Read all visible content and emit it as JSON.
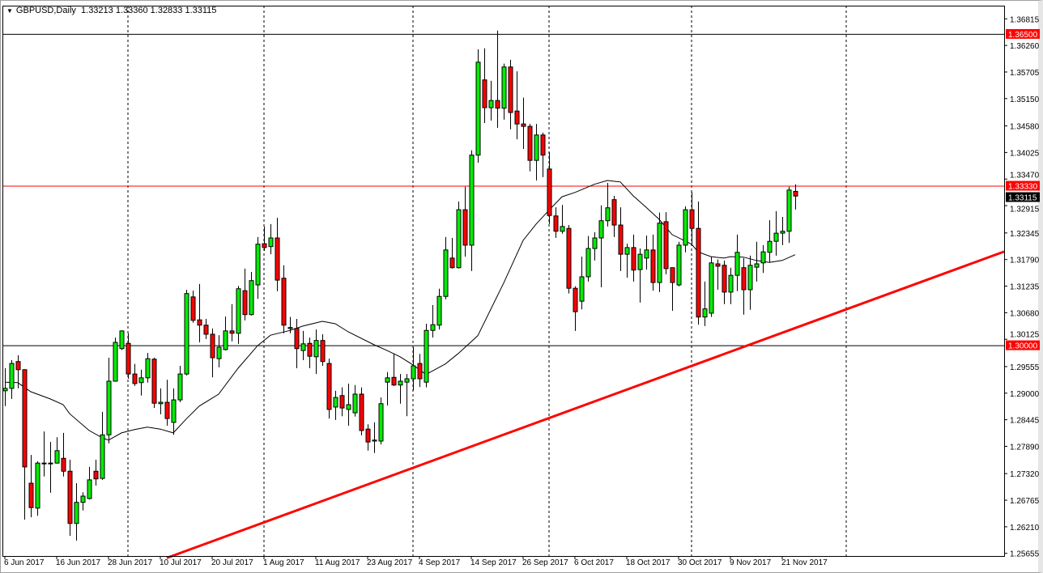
{
  "header": {
    "symbol": "GBPUSD,Daily",
    "ohlc": "1.33213 1.33360 1.32833 1.33115"
  },
  "chart_data": {
    "type": "candlestick",
    "symbol": "GBPUSD",
    "timeframe": "Daily",
    "ylim": [
      1.256,
      1.3709
    ],
    "grid": false,
    "colors": {
      "bull": "#00ee00",
      "bear": "#ff0000",
      "outline": "#000000",
      "ma": "#000000",
      "trendline": "#ff0000",
      "level_label": "#ff0000",
      "price_label": "#000000"
    },
    "y_ticks": [
      "1.36815",
      "1.36260",
      "1.35705",
      "1.35150",
      "1.34580",
      "1.34025",
      "1.33470",
      "1.32915",
      "1.32345",
      "1.31790",
      "1.31235",
      "1.30680",
      "1.30125",
      "1.29555",
      "1.29000",
      "1.28445",
      "1.27890",
      "1.27320",
      "1.26765",
      "1.26210",
      "1.25655"
    ],
    "x_ticks": [
      {
        "date": "2017-06-06",
        "label": "6 Jun 2017"
      },
      {
        "date": "2017-06-16",
        "label": "16 Jun 2017"
      },
      {
        "date": "2017-06-28",
        "label": "28 Jun 2017"
      },
      {
        "date": "2017-07-10",
        "label": "10 Jul 2017"
      },
      {
        "date": "2017-07-20",
        "label": "20 Jul 2017"
      },
      {
        "date": "2017-08-01",
        "label": "1 Aug 2017"
      },
      {
        "date": "2017-08-11",
        "label": "11 Aug 2017"
      },
      {
        "date": "2017-08-23",
        "label": "23 Aug 2017"
      },
      {
        "date": "2017-09-04",
        "label": "4 Sep 2017"
      },
      {
        "date": "2017-09-14",
        "label": "14 Sep 2017"
      },
      {
        "date": "2017-09-26",
        "label": "26 Sep 2017"
      },
      {
        "date": "2017-10-06",
        "label": "6 Oct 2017"
      },
      {
        "date": "2017-10-18",
        "label": "18 Oct 2017"
      },
      {
        "date": "2017-10-30",
        "label": "30 Oct 2017"
      },
      {
        "date": "2017-11-09",
        "label": "9 Nov 2017"
      },
      {
        "date": "2017-11-21",
        "label": "21 Nov 2017"
      }
    ],
    "levels": [
      {
        "price": 1.365,
        "label": "1.36500",
        "line": "#000000"
      },
      {
        "price": 1.3333,
        "label": "1.33330",
        "line": "#ff0000"
      },
      {
        "price": 1.3,
        "label": "1.30000",
        "line": "#000000"
      }
    ],
    "current_price": {
      "price": 1.33115,
      "label": "1.33115"
    },
    "trendline": [
      [
        "2017-07-11",
        1.2556
      ],
      [
        "2017-11-23",
        1.3036
      ]
    ],
    "candles_format": [
      "date",
      "open",
      "high",
      "low",
      "close"
    ],
    "candles": [
      [
        "2017-06-06",
        1.2905,
        1.2952,
        1.2873,
        1.291
      ],
      [
        "2017-06-07",
        1.291,
        1.2969,
        1.2888,
        1.2962
      ],
      [
        "2017-06-08",
        1.2966,
        1.2979,
        1.291,
        1.2949
      ],
      [
        "2017-06-09",
        1.2949,
        1.295,
        1.2636,
        1.2746
      ],
      [
        "2017-06-12",
        1.2712,
        1.2771,
        1.2641,
        1.2661
      ],
      [
        "2017-06-13",
        1.266,
        1.2758,
        1.2644,
        1.2754
      ],
      [
        "2017-06-14",
        1.2754,
        1.282,
        1.2726,
        1.2753
      ],
      [
        "2017-06-15",
        1.2753,
        1.2798,
        1.2692,
        1.2754
      ],
      [
        "2017-06-16",
        1.2754,
        1.2808,
        1.2753,
        1.278
      ],
      [
        "2017-06-19",
        1.2764,
        1.2817,
        1.2726,
        1.2737
      ],
      [
        "2017-06-20",
        1.2737,
        1.2761,
        1.2602,
        1.2628
      ],
      [
        "2017-06-21",
        1.2628,
        1.2712,
        1.2592,
        1.2672
      ],
      [
        "2017-06-22",
        1.2672,
        1.2693,
        1.2655,
        1.2685
      ],
      [
        "2017-06-23",
        1.268,
        1.2746,
        1.2678,
        1.2719
      ],
      [
        "2017-06-26",
        1.2737,
        1.2761,
        1.2707,
        1.2721
      ],
      [
        "2017-06-27",
        1.2722,
        1.2861,
        1.2719,
        1.2813
      ],
      [
        "2017-06-28",
        1.2813,
        1.2974,
        1.2795,
        1.2925
      ],
      [
        "2017-06-29",
        1.2925,
        1.3016,
        1.2924,
        1.3006
      ],
      [
        "2017-06-30",
        1.2993,
        1.3031,
        1.299,
        1.303
      ],
      [
        "2017-07-03",
        1.3004,
        1.3025,
        1.293,
        1.294
      ],
      [
        "2017-07-04",
        1.294,
        1.2961,
        1.2915,
        1.292
      ],
      [
        "2017-07-05",
        1.2922,
        1.2949,
        1.2895,
        1.2932
      ],
      [
        "2017-07-06",
        1.2932,
        1.2984,
        1.2922,
        1.2972
      ],
      [
        "2017-07-07",
        1.2971,
        1.2974,
        1.2869,
        1.2879
      ],
      [
        "2017-07-10",
        1.2878,
        1.291,
        1.2856,
        1.2881
      ],
      [
        "2017-07-11",
        1.2881,
        1.2928,
        1.2832,
        1.2847
      ],
      [
        "2017-07-12",
        1.2839,
        1.291,
        1.2813,
        1.2886
      ],
      [
        "2017-07-13",
        1.2886,
        1.2957,
        1.2881,
        1.294
      ],
      [
        "2017-07-14",
        1.294,
        1.3116,
        1.2937,
        1.3108
      ],
      [
        "2017-07-17",
        1.3101,
        1.3114,
        1.3047,
        1.3052
      ],
      [
        "2017-07-18",
        1.3053,
        1.3128,
        1.3006,
        1.3042
      ],
      [
        "2017-07-19",
        1.3042,
        1.3055,
        1.3013,
        1.3023
      ],
      [
        "2017-07-20",
        1.3023,
        1.3035,
        1.2933,
        1.2974
      ],
      [
        "2017-07-21",
        1.2972,
        1.3021,
        1.2954,
        1.2996
      ],
      [
        "2017-07-24",
        1.2991,
        1.306,
        1.2989,
        1.303
      ],
      [
        "2017-07-25",
        1.303,
        1.3086,
        1.3008,
        1.3025
      ],
      [
        "2017-07-26",
        1.3025,
        1.3124,
        1.3003,
        1.3118
      ],
      [
        "2017-07-27",
        1.3114,
        1.316,
        1.3052,
        1.3064
      ],
      [
        "2017-07-28",
        1.3064,
        1.3153,
        1.3062,
        1.3135
      ],
      [
        "2017-07-31",
        1.3126,
        1.3226,
        1.3097,
        1.3211
      ],
      [
        "2017-08-01",
        1.3212,
        1.3248,
        1.3197,
        1.3204
      ],
      [
        "2017-08-02",
        1.3206,
        1.3253,
        1.319,
        1.3224
      ],
      [
        "2017-08-03",
        1.3224,
        1.3266,
        1.3113,
        1.3136
      ],
      [
        "2017-08-04",
        1.314,
        1.3167,
        1.3025,
        1.3042
      ],
      [
        "2017-08-07",
        1.3035,
        1.3059,
        1.3025,
        1.3037
      ],
      [
        "2017-08-08",
        1.3035,
        1.3055,
        1.2952,
        1.2993
      ],
      [
        "2017-08-09",
        1.2989,
        1.303,
        1.2969,
        1.3003
      ],
      [
        "2017-08-10",
        1.3004,
        1.3016,
        1.2952,
        1.2977
      ],
      [
        "2017-08-11",
        1.2976,
        1.3033,
        1.294,
        1.301
      ],
      [
        "2017-08-14",
        1.301,
        1.3023,
        1.2957,
        1.2966
      ],
      [
        "2017-08-15",
        1.2962,
        1.2972,
        1.2847,
        1.2866
      ],
      [
        "2017-08-16",
        1.2871,
        1.2905,
        1.2844,
        1.2891
      ],
      [
        "2017-08-17",
        1.2895,
        1.2912,
        1.2852,
        1.2869
      ],
      [
        "2017-08-18",
        1.2866,
        1.292,
        1.2832,
        1.2876
      ],
      [
        "2017-08-21",
        1.2859,
        1.2917,
        1.2851,
        1.2898
      ],
      [
        "2017-08-22",
        1.2898,
        1.2912,
        1.2812,
        1.2822
      ],
      [
        "2017-08-23",
        1.2825,
        1.2835,
        1.278,
        1.2798
      ],
      [
        "2017-08-24",
        1.28,
        1.2839,
        1.2775,
        1.2802
      ],
      [
        "2017-08-25",
        1.28,
        1.2891,
        1.2793,
        1.2878
      ],
      [
        "2017-08-28",
        1.2923,
        1.2944,
        1.2874,
        1.2932
      ],
      [
        "2017-08-29",
        1.2933,
        1.2982,
        1.2915,
        1.2917
      ],
      [
        "2017-08-30",
        1.2917,
        1.294,
        1.2878,
        1.2925
      ],
      [
        "2017-08-31",
        1.2923,
        1.294,
        1.2852,
        1.293
      ],
      [
        "2017-09-01",
        1.293,
        1.2996,
        1.2906,
        1.2957
      ],
      [
        "2017-09-04",
        1.2962,
        1.2982,
        1.2913,
        1.293
      ],
      [
        "2017-09-05",
        1.2923,
        1.3045,
        1.2912,
        1.3031
      ],
      [
        "2017-09-06",
        1.3031,
        1.3084,
        1.3016,
        1.3043
      ],
      [
        "2017-09-07",
        1.3042,
        1.3118,
        1.3033,
        1.3102
      ],
      [
        "2017-09-08",
        1.3102,
        1.3226,
        1.3096,
        1.3199
      ],
      [
        "2017-09-11",
        1.3182,
        1.3224,
        1.316,
        1.3162
      ],
      [
        "2017-09-12",
        1.3162,
        1.33,
        1.316,
        1.3283
      ],
      [
        "2017-09-13",
        1.3283,
        1.3331,
        1.3185,
        1.3209
      ],
      [
        "2017-09-14",
        1.3209,
        1.3407,
        1.3155,
        1.3397
      ],
      [
        "2017-09-15",
        1.3397,
        1.3618,
        1.3381,
        1.3591
      ],
      [
        "2017-09-18",
        1.3554,
        1.362,
        1.3464,
        1.3496
      ],
      [
        "2017-09-19",
        1.3496,
        1.3552,
        1.3469,
        1.3511
      ],
      [
        "2017-09-20",
        1.3511,
        1.3657,
        1.3454,
        1.3495
      ],
      [
        "2017-09-21",
        1.3495,
        1.3588,
        1.3471,
        1.3581
      ],
      [
        "2017-09-22",
        1.3581,
        1.3596,
        1.3451,
        1.3486
      ],
      [
        "2017-09-25",
        1.3489,
        1.3572,
        1.343,
        1.3462
      ],
      [
        "2017-09-26",
        1.3462,
        1.3517,
        1.341,
        1.3457
      ],
      [
        "2017-09-27",
        1.3457,
        1.3462,
        1.3363,
        1.3386
      ],
      [
        "2017-09-28",
        1.3386,
        1.3462,
        1.3344,
        1.3439
      ],
      [
        "2017-09-29",
        1.3439,
        1.3444,
        1.3351,
        1.3397
      ],
      [
        "2017-10-02",
        1.3368,
        1.3403,
        1.3253,
        1.3271
      ],
      [
        "2017-10-03",
        1.327,
        1.3288,
        1.3224,
        1.3238
      ],
      [
        "2017-10-04",
        1.3238,
        1.3293,
        1.3233,
        1.3248
      ],
      [
        "2017-10-05",
        1.3244,
        1.3251,
        1.3108,
        1.3119
      ],
      [
        "2017-10-06",
        1.3119,
        1.3123,
        1.303,
        1.307
      ],
      [
        "2017-10-09",
        1.3092,
        1.3185,
        1.3075,
        1.3143
      ],
      [
        "2017-10-10",
        1.3143,
        1.3228,
        1.3133,
        1.3202
      ],
      [
        "2017-10-11",
        1.3202,
        1.3236,
        1.3177,
        1.3224
      ],
      [
        "2017-10-12",
        1.3224,
        1.3292,
        1.3121,
        1.326
      ],
      [
        "2017-10-13",
        1.326,
        1.3339,
        1.3248,
        1.3287
      ],
      [
        "2017-10-16",
        1.3304,
        1.3312,
        1.3226,
        1.3251
      ],
      [
        "2017-10-17",
        1.3251,
        1.3288,
        1.3155,
        1.319
      ],
      [
        "2017-10-18",
        1.319,
        1.3212,
        1.3141,
        1.3204
      ],
      [
        "2017-10-19",
        1.3204,
        1.3231,
        1.3133,
        1.3157
      ],
      [
        "2017-10-20",
        1.3158,
        1.3202,
        1.3089,
        1.319
      ],
      [
        "2017-10-23",
        1.3182,
        1.3229,
        1.3158,
        1.3199
      ],
      [
        "2017-10-24",
        1.3199,
        1.3231,
        1.3114,
        1.3131
      ],
      [
        "2017-10-25",
        1.3131,
        1.3277,
        1.3111,
        1.3255
      ],
      [
        "2017-10-26",
        1.3258,
        1.3278,
        1.3148,
        1.316
      ],
      [
        "2017-10-27",
        1.3162,
        1.3162,
        1.3072,
        1.3131
      ],
      [
        "2017-10-30",
        1.3126,
        1.3216,
        1.3123,
        1.3209
      ],
      [
        "2017-10-31",
        1.3209,
        1.329,
        1.3194,
        1.3283
      ],
      [
        "2017-11-01",
        1.3283,
        1.332,
        1.3211,
        1.3244
      ],
      [
        "2017-11-02",
        1.3244,
        1.33,
        1.3043,
        1.3059
      ],
      [
        "2017-11-03",
        1.3059,
        1.3133,
        1.304,
        1.3076
      ],
      [
        "2017-11-06",
        1.3067,
        1.3185,
        1.3059,
        1.3172
      ],
      [
        "2017-11-07",
        1.317,
        1.3179,
        1.3116,
        1.3165
      ],
      [
        "2017-11-08",
        1.3167,
        1.3177,
        1.3086,
        1.3111
      ],
      [
        "2017-11-09",
        1.3111,
        1.3162,
        1.3086,
        1.3146
      ],
      [
        "2017-11-10",
        1.3146,
        1.3231,
        1.3113,
        1.3194
      ],
      [
        "2017-11-13",
        1.3162,
        1.3182,
        1.3064,
        1.3116
      ],
      [
        "2017-11-14",
        1.3116,
        1.3187,
        1.3074,
        1.3167
      ],
      [
        "2017-11-15",
        1.3163,
        1.3216,
        1.3133,
        1.317
      ],
      [
        "2017-11-16",
        1.3172,
        1.3209,
        1.3151,
        1.3195
      ],
      [
        "2017-11-17",
        1.3194,
        1.3261,
        1.3173,
        1.3217
      ],
      [
        "2017-11-20",
        1.3217,
        1.328,
        1.3187,
        1.3234
      ],
      [
        "2017-11-21",
        1.3234,
        1.3268,
        1.3209,
        1.3238
      ],
      [
        "2017-11-22",
        1.3238,
        1.3331,
        1.3214,
        1.3324
      ],
      [
        "2017-11-23",
        1.33213,
        1.3336,
        1.32833,
        1.33115
      ]
    ],
    "moving_average": [
      [
        "2017-06-06",
        1.2923
      ],
      [
        "2017-06-08",
        1.2922
      ],
      [
        "2017-06-12",
        1.2903
      ],
      [
        "2017-06-15",
        1.2888
      ],
      [
        "2017-06-19",
        1.2876
      ],
      [
        "2017-06-20",
        1.2857
      ],
      [
        "2017-06-23",
        1.2822
      ],
      [
        "2017-06-27",
        1.2807
      ],
      [
        "2017-06-28",
        1.2802
      ],
      [
        "2017-06-30",
        1.2817
      ],
      [
        "2017-07-04",
        1.2824
      ],
      [
        "2017-07-06",
        1.2829
      ],
      [
        "2017-07-10",
        1.2825
      ],
      [
        "2017-07-12",
        1.2817
      ],
      [
        "2017-07-14",
        1.2846
      ],
      [
        "2017-07-18",
        1.2873
      ],
      [
        "2017-07-21",
        1.2898
      ],
      [
        "2017-07-26",
        1.2952
      ],
      [
        "2017-07-31",
        1.2999
      ],
      [
        "2017-08-02",
        1.3021
      ],
      [
        "2017-08-07",
        1.3031
      ],
      [
        "2017-08-09",
        1.304
      ],
      [
        "2017-08-14",
        1.305
      ],
      [
        "2017-08-16",
        1.3045
      ],
      [
        "2017-08-18",
        1.3028
      ],
      [
        "2017-08-24",
        1.3001
      ],
      [
        "2017-08-28",
        1.2989
      ],
      [
        "2017-08-30",
        1.2976
      ],
      [
        "2017-09-01",
        1.2959
      ],
      [
        "2017-09-05",
        1.2939
      ],
      [
        "2017-09-08",
        1.2961
      ],
      [
        "2017-09-12",
        1.2983
      ],
      [
        "2017-09-15",
        1.302
      ],
      [
        "2017-09-21",
        1.313
      ],
      [
        "2017-09-26",
        1.3219
      ],
      [
        "2017-09-28",
        1.3253
      ],
      [
        "2017-10-02",
        1.3282
      ],
      [
        "2017-10-04",
        1.331
      ],
      [
        "2017-10-06",
        1.3319
      ],
      [
        "2017-10-11",
        1.3336
      ],
      [
        "2017-10-13",
        1.3344
      ],
      [
        "2017-10-17",
        1.3341
      ],
      [
        "2017-10-19",
        1.3312
      ],
      [
        "2017-10-23",
        1.3288
      ],
      [
        "2017-10-25",
        1.3263
      ],
      [
        "2017-10-27",
        1.3231
      ],
      [
        "2017-11-01",
        1.3211
      ],
      [
        "2017-11-02",
        1.3195
      ],
      [
        "2017-11-06",
        1.3185
      ],
      [
        "2017-11-08",
        1.3182
      ],
      [
        "2017-11-09",
        1.3185
      ],
      [
        "2017-11-13",
        1.3184
      ],
      [
        "2017-11-15",
        1.3177
      ],
      [
        "2017-11-17",
        1.3173
      ],
      [
        "2017-11-21",
        1.3177
      ],
      [
        "2017-11-23",
        1.3189
      ]
    ]
  }
}
